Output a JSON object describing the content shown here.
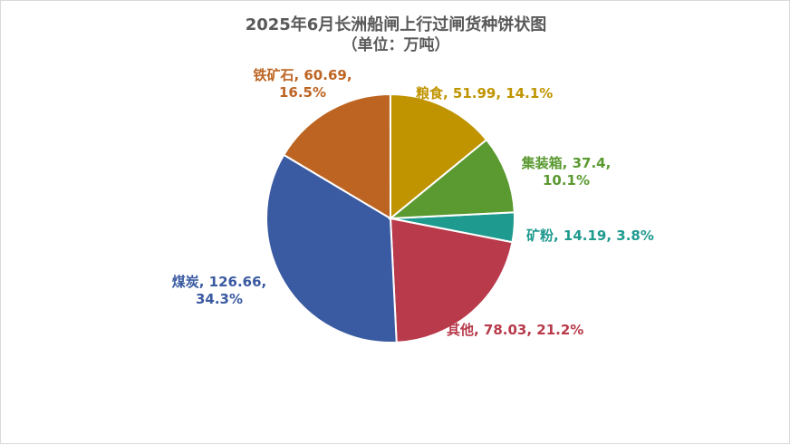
{
  "chart_data": {
    "type": "pie",
    "title": "2025年6月长洲船闸上行过闸货种饼状图",
    "subtitle": "（单位：万吨）",
    "slices": [
      {
        "label": "矿粉",
        "value": 14.19,
        "pct": "3.8%",
        "color": "#1f9a8f",
        "text": "矿粉, 14.19, 3.8%"
      },
      {
        "label": "其他",
        "value": 78.03,
        "pct": "21.2%",
        "color": "#b83a4b",
        "text": "其他, 78.03, 21.2%"
      },
      {
        "label": "煤炭",
        "value": 126.66,
        "pct": "34.3%",
        "color": "#3a5aa1",
        "text1": "煤炭, 126.66,",
        "text2": "34.3%"
      },
      {
        "label": "铁矿石",
        "value": 60.69,
        "pct": "16.5%",
        "color": "#bd6422",
        "text1": "铁矿石, 60.69,",
        "text2": "16.5%"
      },
      {
        "label": "粮食",
        "value": 51.99,
        "pct": "14.1%",
        "color": "#c09400",
        "text": "粮食, 51.99, 14.1%"
      },
      {
        "label": "集装箱",
        "value": 37.4,
        "pct": "10.1%",
        "color": "#5a9a31",
        "text1": "集装箱, 37.4,",
        "text2": "10.1%"
      }
    ],
    "legend": "none"
  }
}
